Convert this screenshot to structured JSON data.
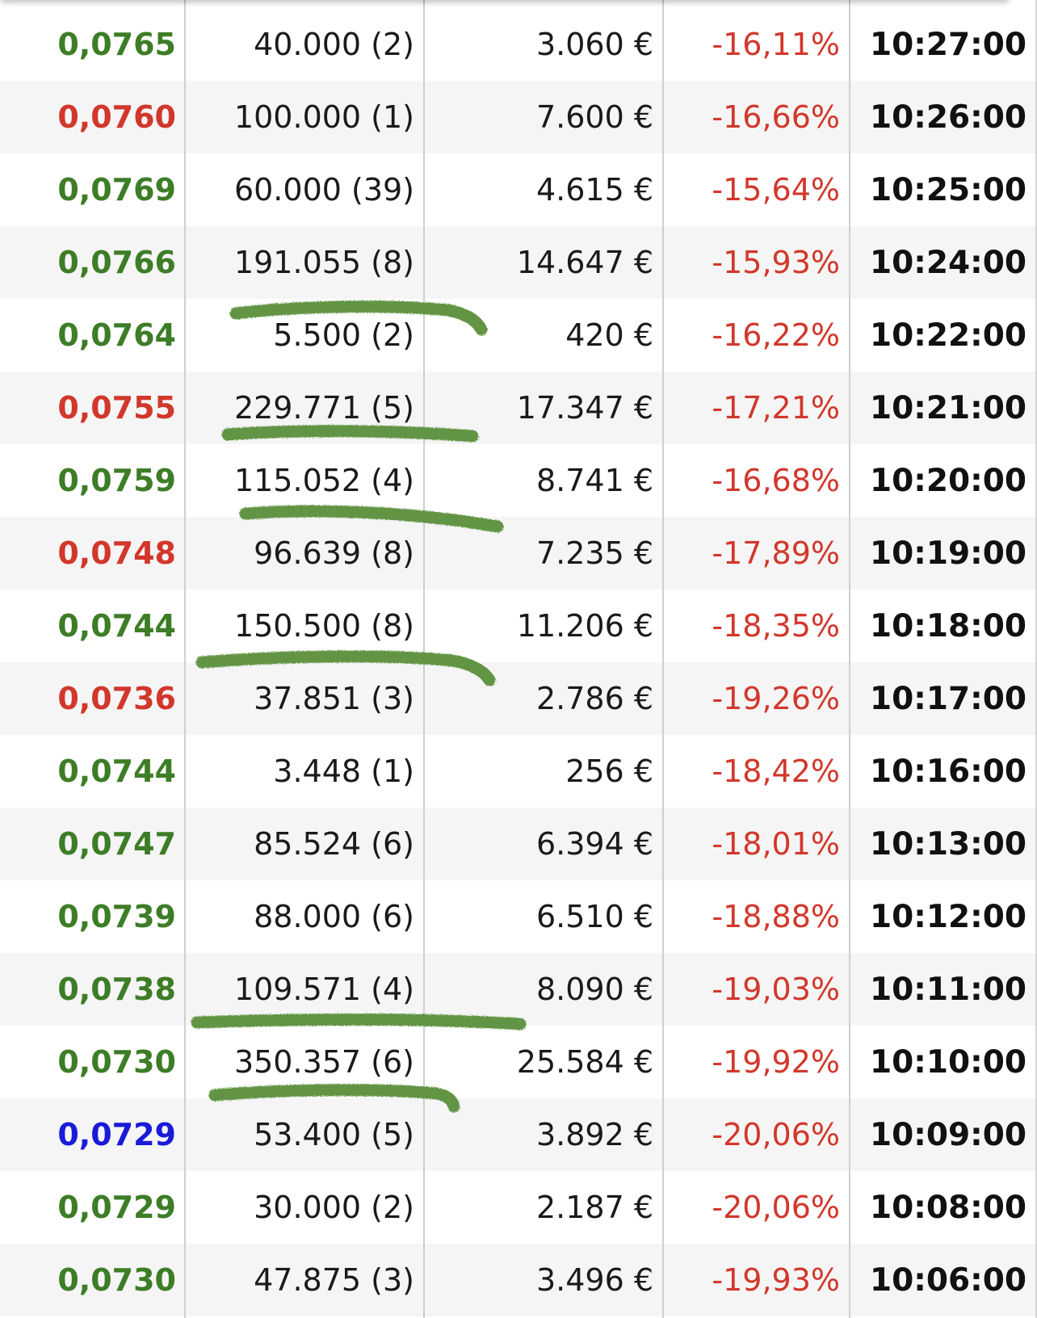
{
  "colors": {
    "up": "#3d7d26",
    "down": "#d2372b",
    "neutral": "#1a1ad9",
    "change": "#d2372b",
    "row_alt": "#f5f5f5",
    "divider": "#cfcfcf",
    "scribble": "#5a8f3a"
  },
  "trades": [
    {
      "price": "0,0765",
      "direction": "up",
      "volume": "40.000 (2)",
      "amount": "3.060 €",
      "change": "-16,11%",
      "time": "10:27:00"
    },
    {
      "price": "0,0760",
      "direction": "down",
      "volume": "100.000 (1)",
      "amount": "7.600 €",
      "change": "-16,66%",
      "time": "10:26:00"
    },
    {
      "price": "0,0769",
      "direction": "up",
      "volume": "60.000 (39)",
      "amount": "4.615 €",
      "change": "-15,64%",
      "time": "10:25:00"
    },
    {
      "price": "0,0766",
      "direction": "up",
      "volume": "191.055 (8)",
      "amount": "14.647 €",
      "change": "-15,93%",
      "time": "10:24:00"
    },
    {
      "price": "0,0764",
      "direction": "up",
      "volume": "5.500 (2)",
      "amount": "420 €",
      "change": "-16,22%",
      "time": "10:22:00"
    },
    {
      "price": "0,0755",
      "direction": "down",
      "volume": "229.771 (5)",
      "amount": "17.347 €",
      "change": "-17,21%",
      "time": "10:21:00"
    },
    {
      "price": "0,0759",
      "direction": "up",
      "volume": "115.052 (4)",
      "amount": "8.741 €",
      "change": "-16,68%",
      "time": "10:20:00"
    },
    {
      "price": "0,0748",
      "direction": "down",
      "volume": "96.639 (8)",
      "amount": "7.235 €",
      "change": "-17,89%",
      "time": "10:19:00"
    },
    {
      "price": "0,0744",
      "direction": "up",
      "volume": "150.500 (8)",
      "amount": "11.206 €",
      "change": "-18,35%",
      "time": "10:18:00"
    },
    {
      "price": "0,0736",
      "direction": "down",
      "volume": "37.851 (3)",
      "amount": "2.786 €",
      "change": "-19,26%",
      "time": "10:17:00"
    },
    {
      "price": "0,0744",
      "direction": "up",
      "volume": "3.448 (1)",
      "amount": "256 €",
      "change": "-18,42%",
      "time": "10:16:00"
    },
    {
      "price": "0,0747",
      "direction": "up",
      "volume": "85.524 (6)",
      "amount": "6.394 €",
      "change": "-18,01%",
      "time": "10:13:00"
    },
    {
      "price": "0,0739",
      "direction": "up",
      "volume": "88.000 (6)",
      "amount": "6.510 €",
      "change": "-18,88%",
      "time": "10:12:00"
    },
    {
      "price": "0,0738",
      "direction": "up",
      "volume": "109.571 (4)",
      "amount": "8.090 €",
      "change": "-19,03%",
      "time": "10:11:00"
    },
    {
      "price": "0,0730",
      "direction": "up",
      "volume": "350.357 (6)",
      "amount": "25.584 €",
      "change": "-19,92%",
      "time": "10:10:00"
    },
    {
      "price": "0,0729",
      "direction": "neutral",
      "volume": "53.400 (5)",
      "amount": "3.892 €",
      "change": "-20,06%",
      "time": "10:09:00"
    },
    {
      "price": "0,0729",
      "direction": "up",
      "volume": "30.000 (2)",
      "amount": "2.187 €",
      "change": "-20,06%",
      "time": "10:08:00"
    },
    {
      "price": "0,0730",
      "direction": "up",
      "volume": "47.875 (3)",
      "amount": "3.496 €",
      "change": "-19,93%",
      "time": "10:06:00"
    }
  ]
}
